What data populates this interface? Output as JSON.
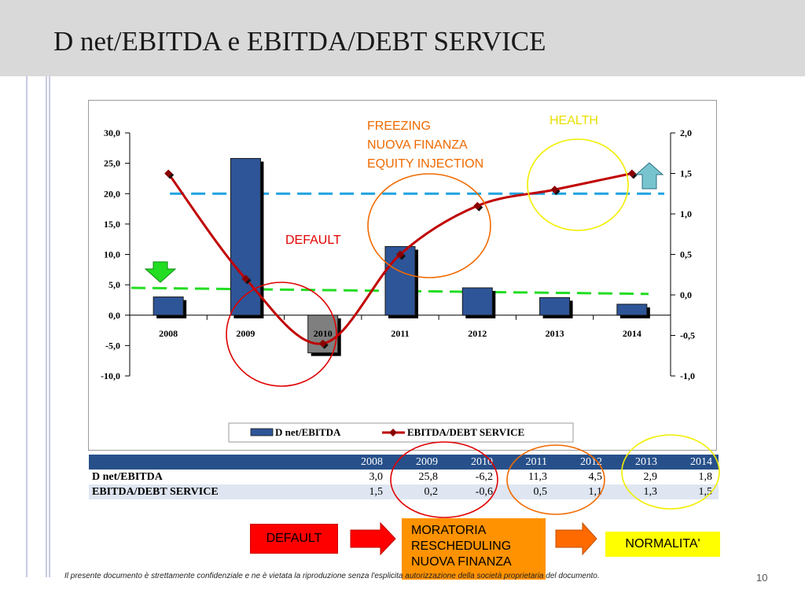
{
  "slide": {
    "title": "D net/EBITDA e EBITDA/DEBT SERVICE",
    "footer_left": "Il presente documento è strettamente confidenziale e ne è vietata la riproduzione senza l'esplicita autorizzazione della società proprietaria del documento.",
    "page_number": "10"
  },
  "chart_data": {
    "type": "bar",
    "categories": [
      "2008",
      "2009",
      "2010",
      "2011",
      "2012",
      "2013",
      "2014"
    ],
    "series": [
      {
        "name": "D net/EBITDA",
        "type": "bar",
        "axis": "left",
        "values": [
          3.0,
          25.8,
          -6.2,
          11.3,
          4.5,
          2.9,
          1.8
        ]
      },
      {
        "name": "EBITDA/DEBT SERVICE",
        "type": "line",
        "axis": "right",
        "values": [
          1.5,
          0.2,
          -0.6,
          0.5,
          1.1,
          1.3,
          1.5
        ]
      }
    ],
    "y_left": {
      "ticks": [
        "30,0",
        "25,0",
        "20,0",
        "15,0",
        "10,0",
        "5,0",
        "0,0",
        "-5,0",
        "-10,0"
      ],
      "range": [
        -10,
        30
      ]
    },
    "y_right": {
      "ticks": [
        "2,0",
        "1,5",
        "1,0",
        "0,5",
        "0,0",
        "-0,5",
        "-1,0"
      ],
      "range": [
        -1,
        2
      ]
    },
    "reference_lines": [
      {
        "axis": "left",
        "value": 20,
        "color": "#1fa3e0",
        "style": "dashed"
      },
      {
        "axis": "left",
        "value_start": 4.5,
        "value_end": 3.5,
        "color": "#22dd22",
        "style": "dashed"
      }
    ],
    "annotations": [
      {
        "text": "DEFAULT",
        "color": "#e00000"
      },
      {
        "text": "FREEZING",
        "color": "#f06a00"
      },
      {
        "text": "NUOVA FINANZA",
        "color": "#f06a00"
      },
      {
        "text": "EQUITY INJECTION",
        "color": "#f06a00"
      },
      {
        "text": "HEALTH",
        "color": "#e8e000"
      }
    ],
    "legend": {
      "placement": "bottom"
    },
    "colors": {
      "bar": "#2e5597",
      "bar_negative": "#7f7f7f",
      "line": "#c00000",
      "marker": "#8b0000"
    }
  },
  "table": {
    "years": [
      "2008",
      "2009",
      "2010",
      "2011",
      "2012",
      "2013",
      "2014"
    ],
    "rows": [
      {
        "label": "D net/EBITDA",
        "values": [
          "3,0",
          "25,8",
          "-6,2",
          "11,3",
          "4,5",
          "2,9",
          "1,8"
        ]
      },
      {
        "label": "EBITDA/DEBT SERVICE",
        "values": [
          "1,5",
          "0,2",
          "-0,6",
          "0,5",
          "1,1",
          "1,3",
          "1,5"
        ]
      }
    ]
  },
  "flow": {
    "step1": "DEFAULT",
    "step2_lines": [
      "MORATORIA",
      "RESCHEDULING",
      "NUOVA FINANZA"
    ],
    "step3": "NORMALITA'"
  }
}
